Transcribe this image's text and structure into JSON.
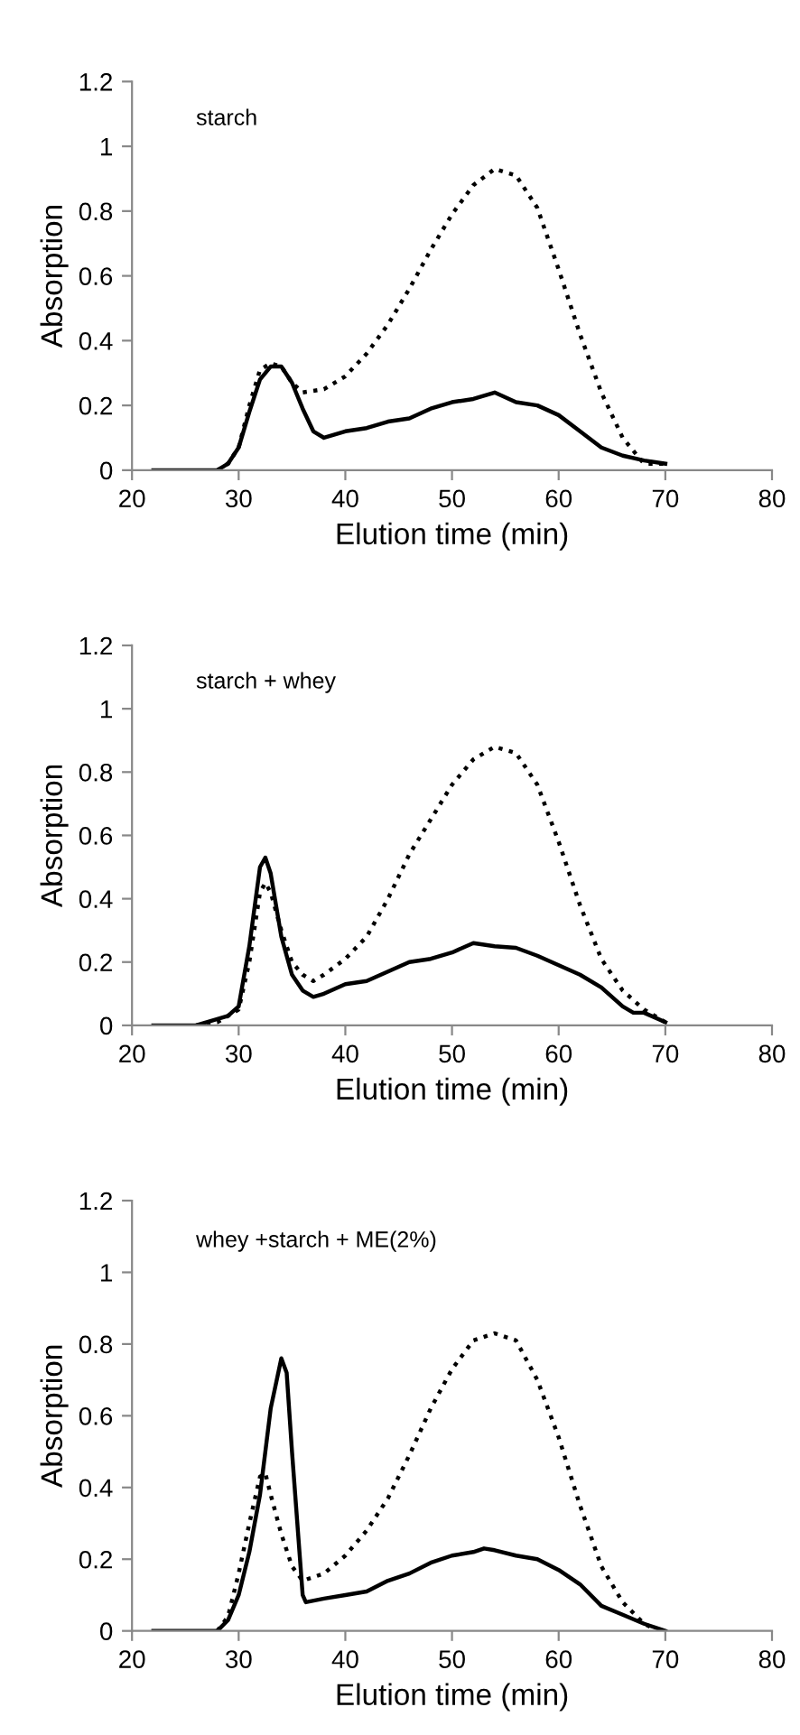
{
  "chart_data": [
    {
      "type": "line",
      "xlabel": "Elution time (min)",
      "ylabel": "Absorption",
      "annotations": [
        "starch"
      ],
      "xlim": [
        20,
        80
      ],
      "xticks": [
        20,
        30,
        40,
        50,
        60,
        70,
        80
      ],
      "ylim": [
        0,
        1.2
      ],
      "yticks": [
        0,
        0.2,
        0.4,
        0.6,
        0.8,
        1,
        1.2
      ],
      "grid": false,
      "series": [
        {
          "color": "#000000",
          "line_style": "solid",
          "x": [
            22,
            28,
            29,
            30,
            31,
            32,
            33,
            34,
            35,
            36,
            37,
            38,
            39,
            40,
            42,
            44,
            46,
            48,
            50,
            52,
            54,
            56,
            58,
            60,
            62,
            64,
            66,
            68,
            70
          ],
          "values": [
            0,
            0,
            0.02,
            0.07,
            0.18,
            0.28,
            0.32,
            0.32,
            0.27,
            0.19,
            0.12,
            0.1,
            0.11,
            0.12,
            0.13,
            0.15,
            0.16,
            0.19,
            0.21,
            0.22,
            0.24,
            0.21,
            0.2,
            0.17,
            0.12,
            0.07,
            0.045,
            0.03,
            0.02
          ]
        },
        {
          "color": "#000000",
          "line_style": "dotted",
          "x": [
            28,
            29,
            30,
            31,
            32,
            33,
            34,
            35,
            36,
            38,
            40,
            42,
            44,
            46,
            48,
            50,
            52,
            54,
            56,
            58,
            60,
            62,
            64,
            66,
            68,
            70
          ],
          "values": [
            0,
            0.02,
            0.07,
            0.2,
            0.31,
            0.33,
            0.32,
            0.27,
            0.24,
            0.25,
            0.29,
            0.36,
            0.45,
            0.56,
            0.68,
            0.79,
            0.88,
            0.93,
            0.91,
            0.81,
            0.62,
            0.42,
            0.24,
            0.1,
            0.02,
            0.02
          ]
        }
      ]
    },
    {
      "type": "line",
      "xlabel": "Elution time (min)",
      "ylabel": "Absorption",
      "annotations": [
        "starch + whey"
      ],
      "xlim": [
        20,
        80
      ],
      "xticks": [
        20,
        30,
        40,
        50,
        60,
        70,
        80
      ],
      "ylim": [
        0,
        1.2
      ],
      "yticks": [
        0,
        0.2,
        0.4,
        0.6,
        0.8,
        1,
        1.2
      ],
      "grid": false,
      "series": [
        {
          "color": "#000000",
          "line_style": "solid",
          "x": [
            22,
            26,
            27,
            29,
            30,
            31,
            32,
            32.5,
            33,
            34,
            35,
            36,
            37,
            38,
            40,
            42,
            44,
            46,
            48,
            50,
            52,
            54,
            56,
            58,
            60,
            62,
            64,
            66,
            67,
            68,
            70
          ],
          "values": [
            0,
            0,
            0.01,
            0.03,
            0.06,
            0.25,
            0.5,
            0.53,
            0.48,
            0.28,
            0.16,
            0.11,
            0.09,
            0.1,
            0.13,
            0.14,
            0.17,
            0.2,
            0.21,
            0.23,
            0.26,
            0.25,
            0.245,
            0.22,
            0.19,
            0.16,
            0.12,
            0.06,
            0.04,
            0.04,
            0.01
          ]
        },
        {
          "color": "#000000",
          "line_style": "dotted",
          "x": [
            26,
            28,
            30,
            31,
            32,
            32.5,
            33,
            34,
            35,
            36,
            37,
            38,
            40,
            42,
            44,
            46,
            48,
            50,
            52,
            54,
            56,
            58,
            60,
            62,
            64,
            66,
            68,
            70
          ],
          "values": [
            0,
            0.01,
            0.05,
            0.2,
            0.42,
            0.45,
            0.42,
            0.3,
            0.2,
            0.16,
            0.14,
            0.16,
            0.21,
            0.28,
            0.4,
            0.54,
            0.65,
            0.76,
            0.84,
            0.88,
            0.86,
            0.76,
            0.58,
            0.38,
            0.21,
            0.11,
            0.05,
            0.01
          ]
        }
      ]
    },
    {
      "type": "line",
      "xlabel": "Elution time (min)",
      "ylabel": "Absorption",
      "annotations": [
        "whey +starch + ME(2%)"
      ],
      "xlim": [
        20,
        80
      ],
      "xticks": [
        20,
        30,
        40,
        50,
        60,
        70,
        80
      ],
      "ylim": [
        0,
        1.2
      ],
      "yticks": [
        0,
        0.2,
        0.4,
        0.6,
        0.8,
        1,
        1.2
      ],
      "grid": false,
      "series": [
        {
          "color": "#000000",
          "line_style": "solid",
          "x": [
            22,
            26,
            28,
            29,
            30,
            31,
            32,
            33,
            34,
            34.5,
            35,
            36,
            36.3,
            38,
            40,
            42,
            44,
            46,
            48,
            50,
            52,
            53,
            54,
            56,
            58,
            60,
            62,
            64,
            66,
            68,
            70
          ],
          "values": [
            0,
            0,
            0,
            0.03,
            0.1,
            0.22,
            0.38,
            0.62,
            0.76,
            0.72,
            0.5,
            0.1,
            0.08,
            0.09,
            0.1,
            0.11,
            0.14,
            0.16,
            0.19,
            0.21,
            0.22,
            0.23,
            0.225,
            0.21,
            0.2,
            0.17,
            0.13,
            0.07,
            0.045,
            0.02,
            0
          ]
        },
        {
          "color": "#000000",
          "line_style": "dotted",
          "x": [
            28,
            29,
            30,
            31,
            32,
            32.5,
            33,
            34,
            35,
            36,
            38,
            40,
            42,
            44,
            46,
            48,
            50,
            52,
            54,
            56,
            58,
            60,
            62,
            64,
            66,
            68,
            69
          ],
          "values": [
            0,
            0.04,
            0.16,
            0.3,
            0.43,
            0.44,
            0.38,
            0.27,
            0.18,
            0.14,
            0.16,
            0.21,
            0.28,
            0.37,
            0.49,
            0.62,
            0.73,
            0.81,
            0.83,
            0.81,
            0.7,
            0.54,
            0.35,
            0.18,
            0.08,
            0.02,
            0.005
          ]
        }
      ]
    }
  ]
}
